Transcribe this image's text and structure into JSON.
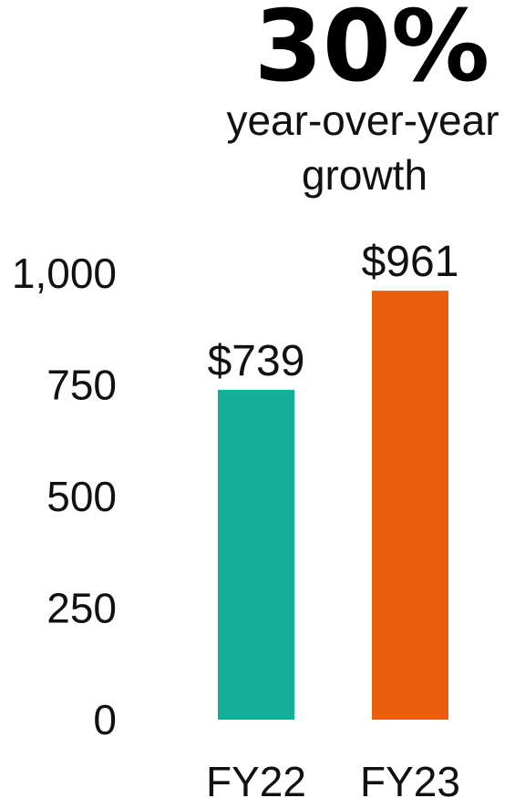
{
  "headline": {
    "value": "30%",
    "subtitle_line1": "year-over-year",
    "subtitle_line2": "growth"
  },
  "chart_data": {
    "type": "bar",
    "categories": [
      "FY22",
      "FY23"
    ],
    "values": [
      739,
      961
    ],
    "data_labels": [
      "$739",
      "$961"
    ],
    "colors": [
      "#14ae99",
      "#ea5f0f"
    ],
    "yticks": [
      {
        "value": 0,
        "label": "0"
      },
      {
        "value": 250,
        "label": "250"
      },
      {
        "value": 500,
        "label": "500"
      },
      {
        "value": 750,
        "label": "750"
      },
      {
        "value": 1000,
        "label": "1,000"
      }
    ],
    "ylim": [
      0,
      1000
    ],
    "grid": false,
    "title": "",
    "xlabel": "",
    "ylabel": ""
  }
}
